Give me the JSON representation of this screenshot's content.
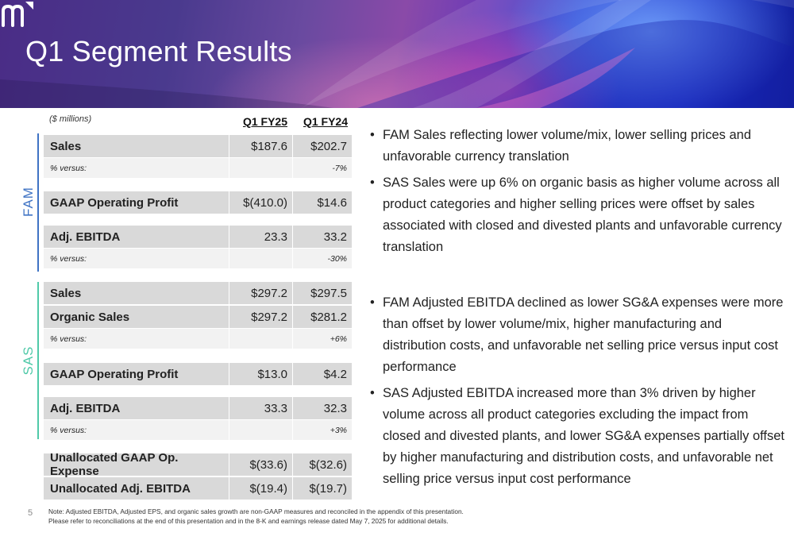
{
  "header": {
    "title": "Q1 Segment Results",
    "logo_text": "m"
  },
  "table": {
    "units": "($ millions)",
    "col1": "Q1 FY25",
    "col2": "Q1 FY24",
    "fam_label": "FAM",
    "sas_label": "SAS",
    "fam_color": "#3f73c4",
    "sas_color": "#4fc9a8",
    "fam": {
      "sales": {
        "label": "Sales",
        "v1": "$187.6",
        "v2": "$202.7"
      },
      "sales_versus": {
        "label": "% versus:",
        "v1": "",
        "v2": "-7%"
      },
      "gaap_op": {
        "label": "GAAP Operating Profit",
        "v1": "$(410.0)",
        "v2": "$14.6"
      },
      "adj_ebitda": {
        "label": "Adj. EBITDA",
        "v1": "23.3",
        "v2": "33.2"
      },
      "ebitda_versus": {
        "label": "% versus:",
        "v1": "",
        "v2": "-30%"
      }
    },
    "sas": {
      "sales": {
        "label": "Sales",
        "v1": "$297.2",
        "v2": "$297.5"
      },
      "organic_sales": {
        "label": "Organic Sales",
        "v1": "$297.2",
        "v2": "$281.2"
      },
      "organic_versus": {
        "label": "% versus:",
        "v1": "",
        "v2": "+6%"
      },
      "gaap_op": {
        "label": "GAAP Operating Profit",
        "v1": "$13.0",
        "v2": "$4.2"
      },
      "adj_ebitda": {
        "label": "Adj. EBITDA",
        "v1": "33.3",
        "v2": "32.3"
      },
      "ebitda_versus": {
        "label": "% versus:",
        "v1": "",
        "v2": "+3%"
      }
    },
    "unallocated": {
      "gaap": {
        "label": "Unallocated GAAP Op. Expense",
        "v1": "$(33.6)",
        "v2": "$(32.6)"
      },
      "ebitda": {
        "label": "Unallocated Adj. EBITDA",
        "v1": "$(19.4)",
        "v2": "$(19.7)"
      }
    }
  },
  "bullets_top": [
    "FAM Sales reflecting lower volume/mix, lower selling prices and unfavorable currency translation",
    "SAS Sales were up 6% on organic basis as higher volume across all product categories and higher selling prices were offset by sales associated with closed and divested plants and unfavorable currency translation"
  ],
  "bullets_bottom": [
    "FAM Adjusted EBITDA declined as lower SG&A expenses were more than offset by lower volume/mix, higher manufacturing and distribution costs, and unfavorable net selling price versus input cost performance",
    "SAS Adjusted EBITDA increased more than 3% driven by higher volume across all product categories excluding the impact from closed and divested plants, and lower SG&A expenses partially offset by higher manufacturing and distribution costs, and unfavorable net selling price versus input cost performance"
  ],
  "footer": {
    "page_number": "5",
    "note_line1": "Note: Adjusted EBITDA, Adjusted EPS, and organic sales growth are non-GAAP measures and reconciled in the appendix of this presentation.",
    "note_line2": "Please refer to reconciliations at the end of this presentation and in the 8-K and earnings release dated May 7, 2025 for additional details."
  }
}
